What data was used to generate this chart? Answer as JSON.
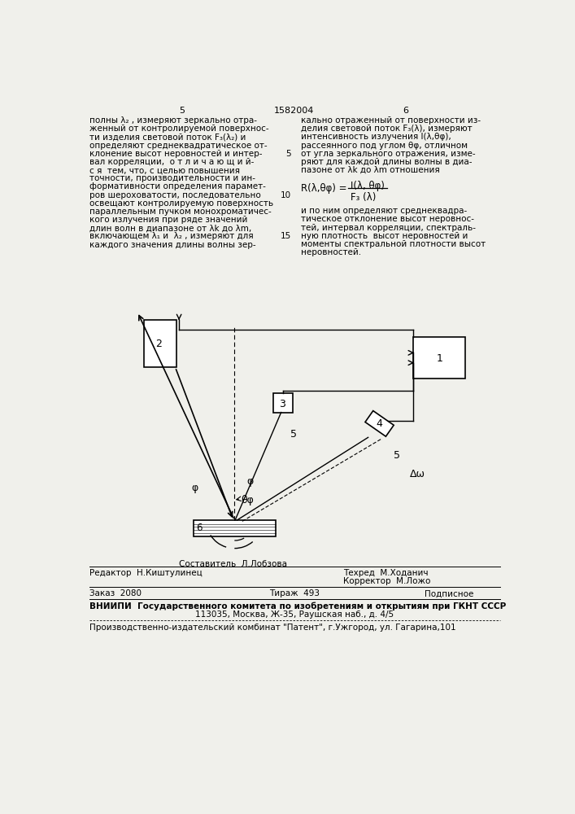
{
  "bg_color": "#f0f0eb",
  "header": {
    "left_num": "5",
    "center_num": "1582004",
    "right_num": "6"
  },
  "left_column_text": [
    "полны λ₂ , измеряют зеркально отра-",
    "женный от контролируемой поверхнос-",
    "ти изделия световой поток F₃(λ₂) и",
    "определяют среднеквадратическое от-",
    "клонение высот неровностей и интер-",
    "вал корреляции,  о т л и ч а ю щ и й-",
    "с я  тем, что, с целью повышения",
    "точности, производительности и ин-",
    "формативности определения парамет-",
    "ров шероховатости, последовательно",
    "освещают контролируемую поверхность",
    "параллельным пучком монохроматичес-",
    "кого излучения при ряде значений",
    "длин волн в диапазоне от λk до λm,",
    "включающем λ₁ и  λ₂ , измеряют для",
    "каждого значения длины волны зер-"
  ],
  "right_column_text": [
    "кально отраженный от поверхности из-",
    "делия световой поток F₃(λ), измеряют",
    "интенсивность излучения I(λ,θφ),",
    "рассеянного под углом θφ, отличном",
    "от угла зеркального отражения, изме-",
    "ряют для каждой длины волны в диа-",
    "пазоне от λk до λm отношения"
  ],
  "right_column_text2": [
    "и по ним определяют среднеквадра-",
    "тическое отклонение высот неровнос-",
    "тей, интервал корреляции, спектраль-",
    "ную плотность  высот неровностей и",
    "моменты спектральной плотности высот",
    "неровностей."
  ],
  "footer_editor": "Редактор  Н.Киштулинец",
  "footer_compiler": "Составитель  Л.Лобзова",
  "footer_tech": "Техред  М.Ходанич",
  "footer_corrector": "Корректор  М.Ложо",
  "footer_order": "Заказ  2080",
  "footer_print": "Тираж  493",
  "footer_subscription": "Подписное",
  "footer_vniipи": "ВНИИПИ  Государственного комитета по изобретениям и открытиям при ГКНТ СССР",
  "footer_address": "113035, Москва, Ж-35, Раушская наб., д. 4/5",
  "footer_production": "Производственно-издательский комбинат \"Патент\", г.Ужгород, ул. Гагарина,101"
}
